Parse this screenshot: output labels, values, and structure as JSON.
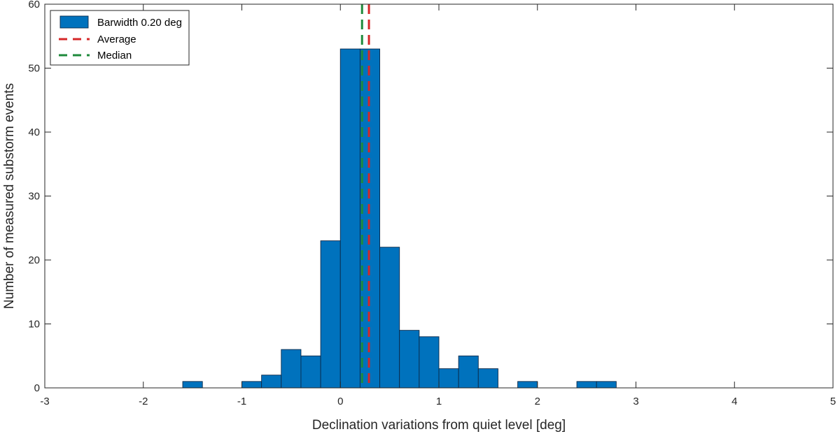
{
  "chart_data": {
    "type": "bar",
    "title": "",
    "xlabel": "Declination variations from quiet level [deg]",
    "ylabel": "Number of measured substorm events",
    "xlim": [
      -3,
      5
    ],
    "ylim": [
      0,
      60
    ],
    "xticks": [
      -3,
      -2,
      -1,
      0,
      1,
      2,
      3,
      4,
      5
    ],
    "yticks": [
      0,
      10,
      20,
      30,
      40,
      50,
      60
    ],
    "bin_width": 0.2,
    "bin_edges_start": -1.6,
    "counts": [
      1,
      0,
      0,
      1,
      2,
      6,
      5,
      23,
      53,
      53,
      22,
      9,
      8,
      3,
      5,
      3,
      0,
      1,
      0,
      0,
      1,
      1
    ],
    "average": 0.29,
    "median": 0.22,
    "grid": false,
    "legend_position": "top-left",
    "colors": {
      "bar_fill": "#0072BD",
      "bar_edge": "#0b2a4a",
      "average": "#D62728",
      "median": "#1E8A3B",
      "axis": "#262626"
    },
    "legend": [
      {
        "label": "Barwidth 0.20 deg",
        "kind": "bar"
      },
      {
        "label": "Average",
        "kind": "average"
      },
      {
        "label": "Median",
        "kind": "median"
      }
    ]
  }
}
